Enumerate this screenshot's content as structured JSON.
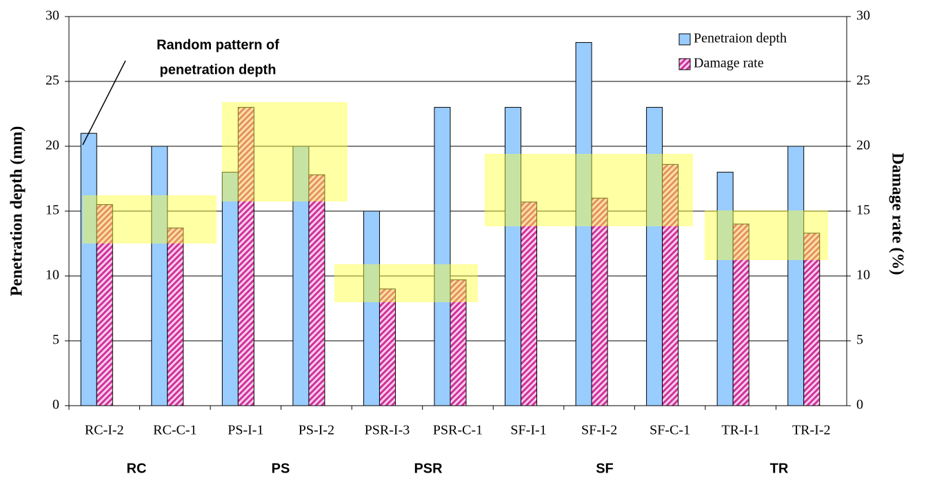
{
  "chart_data": {
    "type": "bar",
    "categories": [
      "RC-I-2",
      "RC-C-1",
      "PS-I-1",
      "PS-I-2",
      "PSR-I-3",
      "PSR-C-1",
      "SF-I-1",
      "SF-I-2",
      "SF-C-1",
      "TR-I-1",
      "TR-I-2"
    ],
    "groups": [
      "RC",
      "PS",
      "PSR",
      "SF",
      "TR"
    ],
    "series": [
      {
        "name": "Penetraion depth",
        "color": "#99ccff",
        "values": [
          21,
          20,
          18,
          20,
          15,
          23,
          23,
          28,
          23,
          18,
          20
        ]
      },
      {
        "name": "Damage rate",
        "color": "#cc3399",
        "axis": "y2",
        "values": [
          15.5,
          13.7,
          23,
          17.8,
          9,
          9.7,
          15.7,
          16,
          18.6,
          14,
          13.3
        ]
      }
    ],
    "ylabel": "Penetration depth (mm)",
    "y2label": "Damage rate (%)",
    "ylim": [
      0,
      30
    ],
    "yticks": [
      0,
      5,
      10,
      15,
      20,
      25,
      30
    ],
    "y2lim": [
      0,
      30
    ],
    "y2ticks": [
      0,
      5,
      10,
      15,
      20,
      25,
      30
    ],
    "annotation": [
      "Random pattern of",
      "penetration depth"
    ],
    "grid": true,
    "legend": "upper right"
  }
}
